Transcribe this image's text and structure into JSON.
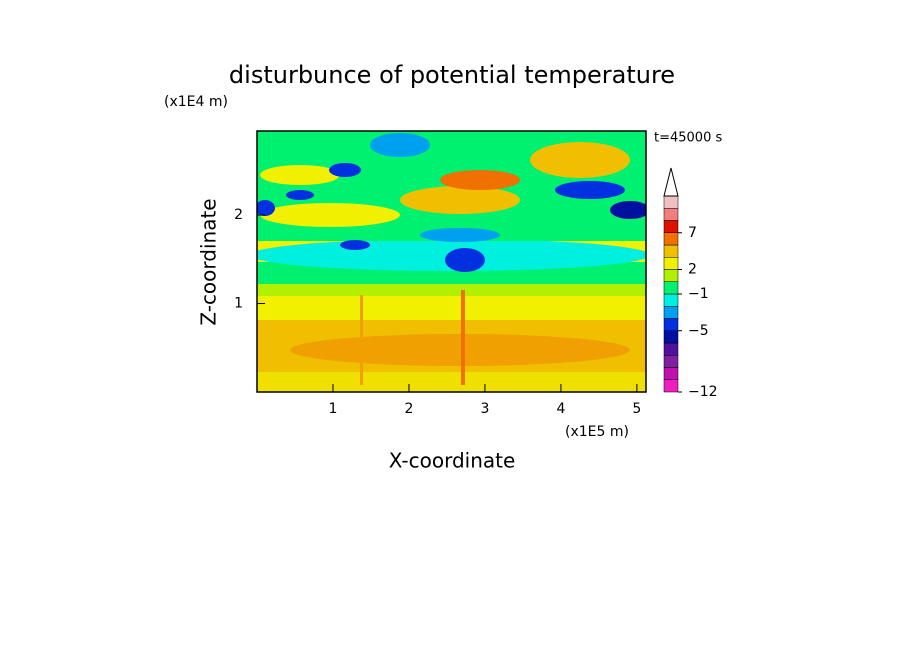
{
  "chart_data": {
    "type": "contour",
    "title": "disturbunce of potential temperature",
    "time_label": "t=45000 s",
    "x_label": "X-coordinate",
    "x_unit": "(x1E5 m)",
    "y_label": "Z-coordinate",
    "y_unit": "(x1E4 m)",
    "xlim": [
      0,
      5.12
    ],
    "xticks": [
      1,
      2,
      3,
      4,
      5
    ],
    "ylim": [
      0,
      2.95
    ],
    "yticks": [
      1,
      2
    ],
    "colorbar": {
      "levels": [
        -12,
        -11,
        -9,
        -8,
        -6,
        -5,
        -3,
        -2,
        -1,
        1,
        2,
        3,
        5,
        7,
        9,
        11,
        13
      ],
      "colors": [
        "#f020c0",
        "#c010b0",
        "#8020a0",
        "#5010a0",
        "#0010a0",
        "#0030e0",
        "#00a0f0",
        "#00f0e0",
        "#00f070",
        "#b0f000",
        "#f0f000",
        "#f0c000",
        "#f07000",
        "#e01000",
        "#f08080",
        "#f0c0c0"
      ],
      "ticks": [
        -12,
        -5,
        -1,
        2,
        7
      ]
    }
  }
}
